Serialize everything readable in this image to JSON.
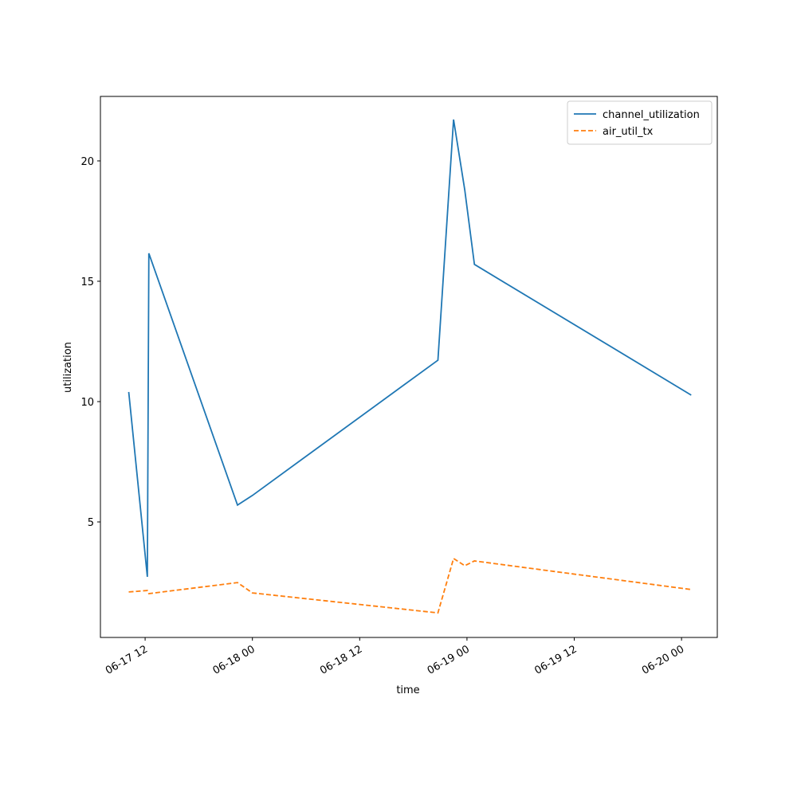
{
  "chart_data": {
    "type": "line",
    "xlabel": "time",
    "ylabel": "utilization",
    "x": [
      "06-17 10:10",
      "06-17 12:15",
      "06-17 12:25",
      "06-17 22:20",
      "06-18 00:00",
      "06-18 20:45",
      "06-18 22:30",
      "06-18 23:45",
      "06-19 00:50",
      "06-20 01:05"
    ],
    "series": [
      {
        "name": "channel_utilization",
        "color": "#1f77b4",
        "linestyle": "solid",
        "values": [
          10.4,
          2.72,
          16.16,
          5.7,
          6.1,
          11.72,
          21.72,
          18.8,
          15.7,
          10.27
        ]
      },
      {
        "name": "air_util_tx",
        "color": "#ff7f0e",
        "linestyle": "dashed",
        "values": [
          2.09,
          2.15,
          2.02,
          2.48,
          2.05,
          1.22,
          3.48,
          3.18,
          3.38,
          2.19
        ]
      }
    ],
    "xlim": [
      "06-17 07",
      "06-20 04"
    ],
    "xticks": [
      "06-17 12",
      "06-18 00",
      "06-18 12",
      "06-19 00",
      "06-19 12",
      "06-20 00"
    ],
    "ylim": [
      0.2,
      22.68
    ],
    "yticks": [
      5,
      10,
      15,
      20
    ],
    "grid": false,
    "legend": "upper right"
  }
}
